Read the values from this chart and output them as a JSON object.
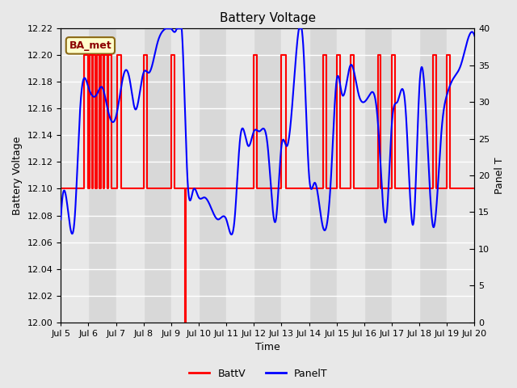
{
  "title": "Battery Voltage",
  "xlabel": "Time",
  "ylabel_left": "Battery Voltage",
  "ylabel_right": "Panel T",
  "xlim": [
    0,
    15
  ],
  "ylim_left": [
    12.0,
    12.22
  ],
  "ylim_right": [
    0,
    40
  ],
  "bg_color": "#e8e8e8",
  "plot_bg_color": "#d8d8d8",
  "band_color_light": "#e8e8e8",
  "xtick_labels": [
    "Jul 5",
    "Jul 6",
    "Jul 7",
    "Jul 8",
    "Jul 9",
    "Jul 10",
    "Jul 11",
    "Jul 12",
    "Jul 13",
    "Jul 14",
    "Jul 15",
    "Jul 16",
    "Jul 17",
    "Jul 18",
    "Jul 19",
    "Jul 20"
  ],
  "annotation_text": "BA_met",
  "annotation_bg": "#ffffcc",
  "annotation_border": "#8b6914",
  "legend_labels": [
    "BattV",
    "PanelT"
  ],
  "legend_colors": [
    "red",
    "blue"
  ],
  "batt_color": "red",
  "panel_color": "blue",
  "grid_color": "white",
  "batt_steps": [
    [
      0.0,
      12.1
    ],
    [
      0.85,
      12.2
    ],
    [
      1.0,
      12.1
    ],
    [
      1.05,
      12.2
    ],
    [
      1.12,
      12.1
    ],
    [
      1.17,
      12.2
    ],
    [
      1.25,
      12.1
    ],
    [
      1.3,
      12.2
    ],
    [
      1.4,
      12.1
    ],
    [
      1.45,
      12.2
    ],
    [
      1.53,
      12.1
    ],
    [
      1.58,
      12.2
    ],
    [
      1.68,
      12.1
    ],
    [
      1.73,
      12.2
    ],
    [
      1.83,
      12.1
    ],
    [
      2.05,
      12.2
    ],
    [
      2.18,
      12.1
    ],
    [
      3.0,
      12.2
    ],
    [
      3.12,
      12.1
    ],
    [
      4.0,
      12.2
    ],
    [
      4.12,
      12.1
    ],
    [
      4.5,
      12.0
    ],
    [
      4.53,
      12.1
    ],
    [
      7.0,
      12.2
    ],
    [
      7.12,
      12.1
    ],
    [
      8.0,
      12.2
    ],
    [
      8.15,
      12.1
    ],
    [
      9.5,
      12.2
    ],
    [
      9.62,
      12.1
    ],
    [
      10.0,
      12.2
    ],
    [
      10.12,
      12.1
    ],
    [
      10.5,
      12.2
    ],
    [
      10.62,
      12.1
    ],
    [
      11.5,
      12.2
    ],
    [
      11.6,
      12.1
    ],
    [
      12.0,
      12.2
    ],
    [
      12.12,
      12.1
    ],
    [
      13.5,
      12.2
    ],
    [
      13.62,
      12.1
    ],
    [
      14.0,
      12.2
    ],
    [
      14.12,
      12.1
    ],
    [
      15.0,
      12.1
    ]
  ],
  "panel_knots_x": [
    0.0,
    0.3,
    0.5,
    0.7,
    1.0,
    1.3,
    1.5,
    1.7,
    2.0,
    2.3,
    2.5,
    2.7,
    3.0,
    3.2,
    3.5,
    3.8,
    4.0,
    4.2,
    4.4,
    4.6,
    4.8,
    5.0,
    5.2,
    5.4,
    5.7,
    6.0,
    6.3,
    6.5,
    6.8,
    7.0,
    7.2,
    7.5,
    7.8,
    8.0,
    8.2,
    8.5,
    8.8,
    9.0,
    9.2,
    9.5,
    9.8,
    10.0,
    10.2,
    10.5,
    10.8,
    11.0,
    11.2,
    11.5,
    11.8,
    12.0,
    12.2,
    12.5,
    12.8,
    13.0,
    13.2,
    13.5,
    13.8,
    14.0,
    14.2,
    14.5,
    14.8,
    15.0
  ],
  "panel_knots_y": [
    14,
    14,
    14,
    29,
    32,
    31,
    32,
    29,
    28,
    34,
    33,
    29,
    34,
    34,
    38,
    40,
    40,
    40,
    39,
    19,
    18,
    17,
    17,
    16,
    14,
    14,
    14,
    25,
    24,
    26,
    26,
    24,
    14,
    24,
    24,
    35,
    37,
    20,
    19,
    13,
    20,
    33,
    31,
    35,
    31,
    30,
    31,
    27,
    14,
    27,
    30,
    29,
    14,
    32,
    31,
    13,
    26,
    31,
    33,
    35,
    39,
    39
  ]
}
